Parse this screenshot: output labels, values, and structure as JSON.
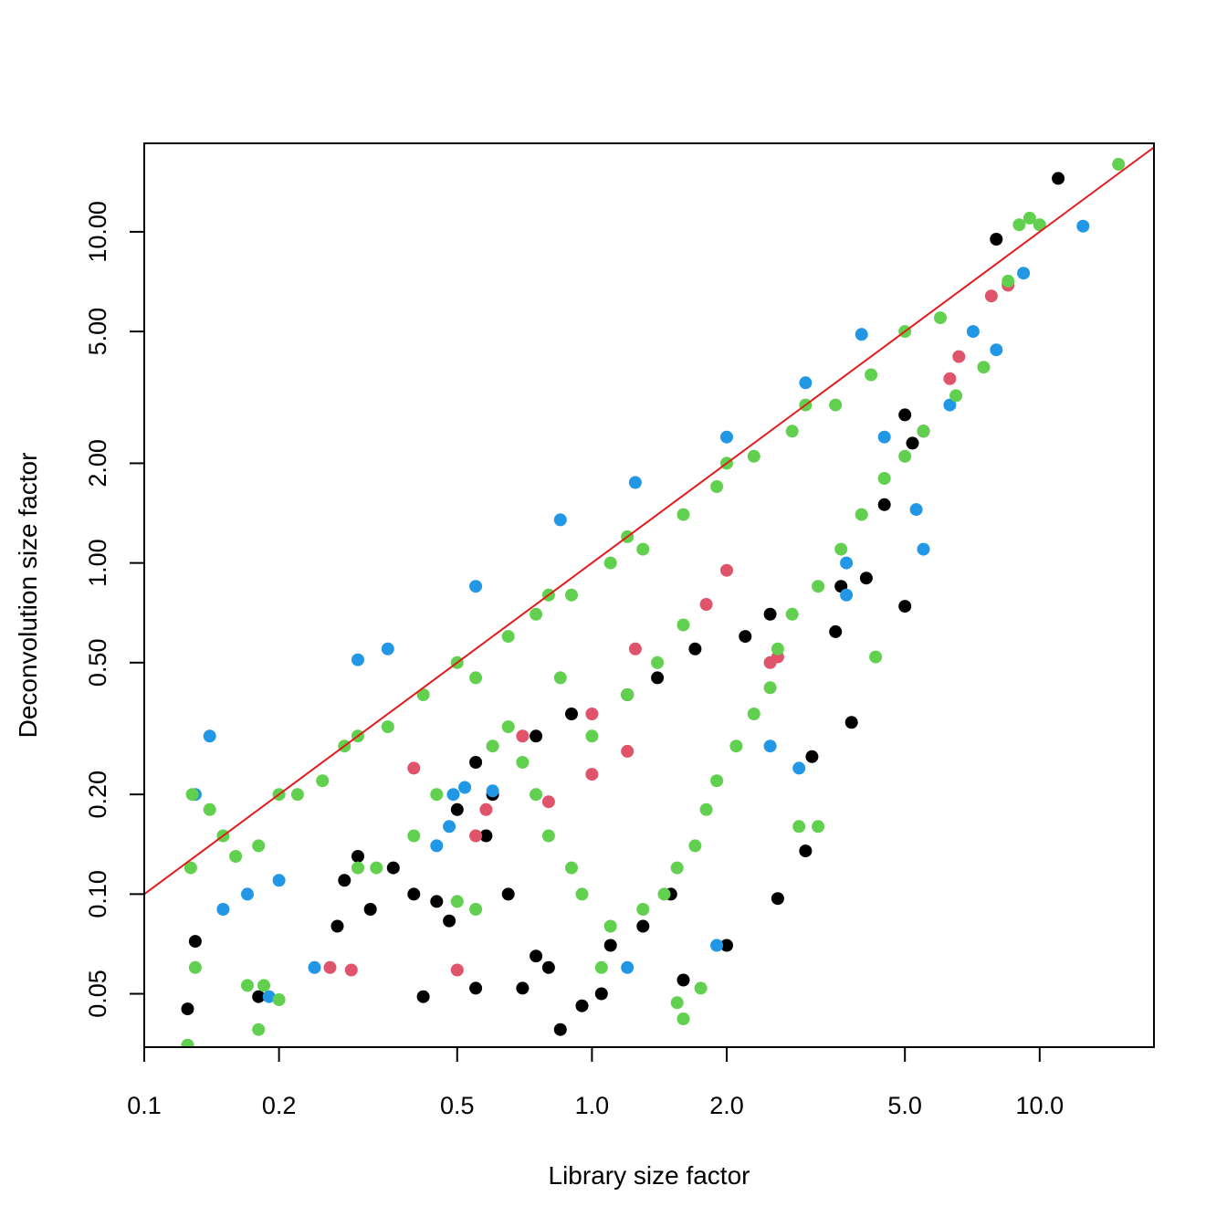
{
  "chart_data": {
    "type": "scatter",
    "title": "",
    "xlabel": "Library size factor",
    "ylabel": "Deconvolution size factor",
    "x_scale": "log",
    "y_scale": "log",
    "xlim": [
      0.1,
      18
    ],
    "ylim": [
      0.0345,
      18.5
    ],
    "x_ticks": [
      {
        "value": 0.1,
        "label": "0.1"
      },
      {
        "value": 0.2,
        "label": "0.2"
      },
      {
        "value": 0.5,
        "label": "0.5"
      },
      {
        "value": 1.0,
        "label": "1.0"
      },
      {
        "value": 2.0,
        "label": "2.0"
      },
      {
        "value": 5.0,
        "label": "5.0"
      },
      {
        "value": 10.0,
        "label": "10.0"
      }
    ],
    "y_ticks": [
      {
        "value": 0.05,
        "label": "0.05"
      },
      {
        "value": 0.1,
        "label": "0.10"
      },
      {
        "value": 0.2,
        "label": "0.20"
      },
      {
        "value": 0.5,
        "label": "0.50"
      },
      {
        "value": 1.0,
        "label": "1.00"
      },
      {
        "value": 2.0,
        "label": "2.00"
      },
      {
        "value": 5.0,
        "label": "5.00"
      },
      {
        "value": 10.0,
        "label": "10.00"
      }
    ],
    "grid": false,
    "legend": "none",
    "reference_line": {
      "type": "y=x",
      "color": "#e41a1c"
    },
    "series": [
      {
        "color": "#000000",
        "points": [
          [
            11.0,
            14.5
          ],
          [
            0.125,
            0.045
          ],
          [
            0.13,
            0.072
          ],
          [
            0.27,
            0.08
          ],
          [
            0.18,
            0.049
          ],
          [
            0.36,
            0.12
          ],
          [
            0.4,
            0.1
          ],
          [
            0.45,
            0.095
          ],
          [
            0.48,
            0.083
          ],
          [
            0.42,
            0.049
          ],
          [
            0.55,
            0.052
          ],
          [
            0.7,
            0.052
          ],
          [
            0.85,
            0.039
          ],
          [
            0.95,
            0.046
          ],
          [
            1.05,
            0.05
          ],
          [
            5.0,
            0.74
          ],
          [
            3.6,
            0.85
          ],
          [
            4.1,
            0.9
          ],
          [
            3.5,
            0.62
          ],
          [
            3.8,
            0.33
          ],
          [
            3.1,
            0.26
          ],
          [
            2.6,
            0.097
          ],
          [
            3.0,
            0.135
          ],
          [
            2.0,
            0.07
          ],
          [
            1.6,
            0.055
          ],
          [
            0.5,
            0.18
          ],
          [
            0.6,
            0.2
          ],
          [
            0.55,
            0.25
          ],
          [
            0.75,
            0.3
          ],
          [
            0.9,
            0.35
          ],
          [
            1.2,
            0.4
          ],
          [
            1.4,
            0.45
          ],
          [
            1.7,
            0.55
          ],
          [
            2.2,
            0.6
          ],
          [
            2.5,
            0.7
          ],
          [
            4.5,
            1.5
          ],
          [
            5.2,
            2.3
          ],
          [
            5.5,
            2.5
          ],
          [
            5.0,
            2.8
          ],
          [
            8.0,
            9.5
          ],
          [
            0.3,
            0.13
          ],
          [
            0.32,
            0.09
          ],
          [
            0.58,
            0.15
          ],
          [
            0.65,
            0.1
          ],
          [
            0.75,
            0.065
          ],
          [
            0.8,
            0.06
          ],
          [
            1.1,
            0.07
          ],
          [
            1.3,
            0.08
          ],
          [
            1.5,
            0.1
          ],
          [
            0.28,
            0.11
          ]
        ]
      },
      {
        "color": "#df536b",
        "points": [
          [
            0.26,
            0.06
          ],
          [
            0.29,
            0.059
          ],
          [
            0.5,
            0.059
          ],
          [
            0.55,
            0.15
          ],
          [
            0.58,
            0.18
          ],
          [
            0.8,
            0.19
          ],
          [
            1.0,
            0.23
          ],
          [
            1.2,
            0.27
          ],
          [
            2.5,
            0.5
          ],
          [
            2.6,
            0.52
          ],
          [
            1.8,
            0.75
          ],
          [
            2.0,
            0.95
          ],
          [
            6.3,
            3.6
          ],
          [
            6.6,
            4.2
          ],
          [
            7.8,
            6.4
          ],
          [
            8.5,
            6.9
          ],
          [
            1.0,
            0.35
          ],
          [
            1.25,
            0.55
          ],
          [
            0.7,
            0.3
          ],
          [
            0.4,
            0.24
          ]
        ]
      },
      {
        "color": "#2297e6",
        "points": [
          [
            12.5,
            10.4
          ],
          [
            9.2,
            7.5
          ],
          [
            8.0,
            4.4
          ],
          [
            7.1,
            5.0
          ],
          [
            6.3,
            3.0
          ],
          [
            5.5,
            1.1
          ],
          [
            5.3,
            1.45
          ],
          [
            3.7,
            1.0
          ],
          [
            3.7,
            0.8
          ],
          [
            1.9,
            0.07
          ],
          [
            1.2,
            0.06
          ],
          [
            0.52,
            0.21
          ],
          [
            0.6,
            0.205
          ],
          [
            0.49,
            0.2
          ],
          [
            0.24,
            0.06
          ],
          [
            0.19,
            0.049
          ],
          [
            0.45,
            0.14
          ],
          [
            0.48,
            0.16
          ],
          [
            2.9,
            0.24
          ],
          [
            2.5,
            0.28
          ],
          [
            0.14,
            0.3
          ],
          [
            0.3,
            0.51
          ],
          [
            0.35,
            0.55
          ],
          [
            0.55,
            0.85
          ],
          [
            0.85,
            1.35
          ],
          [
            1.25,
            1.75
          ],
          [
            2.0,
            2.4
          ],
          [
            3.0,
            3.5
          ],
          [
            4.0,
            4.9
          ],
          [
            0.13,
            0.2
          ],
          [
            0.15,
            0.09
          ],
          [
            0.17,
            0.1
          ],
          [
            0.2,
            0.11
          ],
          [
            4.5,
            2.4
          ]
        ]
      },
      {
        "color": "#61d04f",
        "points": [
          [
            15.0,
            16.0
          ],
          [
            0.125,
            0.035
          ],
          [
            0.13,
            0.06
          ],
          [
            0.17,
            0.053
          ],
          [
            0.18,
            0.039
          ],
          [
            0.185,
            0.053
          ],
          [
            0.2,
            0.048
          ],
          [
            0.3,
            0.12
          ],
          [
            0.33,
            0.12
          ],
          [
            0.5,
            0.095
          ],
          [
            0.55,
            0.09
          ],
          [
            0.4,
            0.15
          ],
          [
            0.45,
            0.2
          ],
          [
            0.6,
            0.28
          ],
          [
            0.65,
            0.32
          ],
          [
            4.3,
            0.52
          ],
          [
            3.2,
            0.16
          ],
          [
            2.9,
            0.16
          ],
          [
            1.55,
            0.047
          ],
          [
            1.6,
            0.042
          ],
          [
            1.75,
            0.052
          ],
          [
            1.05,
            0.06
          ],
          [
            1.1,
            0.08
          ],
          [
            1.3,
            0.09
          ],
          [
            1.45,
            0.1
          ],
          [
            1.55,
            0.12
          ],
          [
            1.7,
            0.14
          ],
          [
            1.8,
            0.18
          ],
          [
            1.9,
            0.22
          ],
          [
            2.1,
            0.28
          ],
          [
            2.3,
            0.35
          ],
          [
            2.5,
            0.42
          ],
          [
            2.6,
            0.55
          ],
          [
            2.8,
            0.7
          ],
          [
            3.2,
            0.85
          ],
          [
            3.6,
            1.1
          ],
          [
            4.0,
            1.4
          ],
          [
            4.5,
            1.8
          ],
          [
            5.0,
            2.1
          ],
          [
            5.5,
            2.5
          ],
          [
            6.5,
            3.2
          ],
          [
            7.5,
            3.9
          ],
          [
            8.5,
            7.1
          ],
          [
            9.0,
            10.5
          ],
          [
            9.5,
            11.0
          ],
          [
            10.0,
            10.5
          ],
          [
            0.8,
            0.15
          ],
          [
            0.9,
            0.12
          ],
          [
            0.95,
            0.1
          ],
          [
            0.75,
            0.2
          ],
          [
            0.7,
            0.25
          ],
          [
            1.2,
            0.4
          ],
          [
            1.4,
            0.5
          ],
          [
            1.0,
            0.3
          ],
          [
            0.85,
            0.45
          ],
          [
            1.6,
            0.65
          ],
          [
            0.127,
            0.12
          ],
          [
            0.15,
            0.15
          ],
          [
            0.2,
            0.2
          ],
          [
            0.3,
            0.3
          ],
          [
            0.5,
            0.5
          ],
          [
            0.8,
            0.8
          ],
          [
            1.2,
            1.2
          ],
          [
            2.0,
            2.0
          ],
          [
            3.0,
            3.0
          ],
          [
            5.0,
            5.0
          ],
          [
            0.128,
            0.2
          ],
          [
            0.14,
            0.18
          ],
          [
            0.16,
            0.13
          ],
          [
            0.18,
            0.14
          ],
          [
            0.22,
            0.2
          ],
          [
            0.25,
            0.22
          ],
          [
            0.28,
            0.28
          ],
          [
            0.35,
            0.32
          ],
          [
            0.42,
            0.4
          ],
          [
            0.55,
            0.45
          ],
          [
            0.65,
            0.6
          ],
          [
            0.75,
            0.7
          ],
          [
            0.9,
            0.8
          ],
          [
            1.1,
            1.0
          ],
          [
            1.3,
            1.1
          ],
          [
            1.6,
            1.4
          ],
          [
            1.9,
            1.7
          ],
          [
            2.3,
            2.1
          ],
          [
            2.8,
            2.5
          ],
          [
            3.5,
            3.0
          ],
          [
            4.2,
            3.7
          ],
          [
            6.0,
            5.5
          ]
        ]
      }
    ]
  }
}
